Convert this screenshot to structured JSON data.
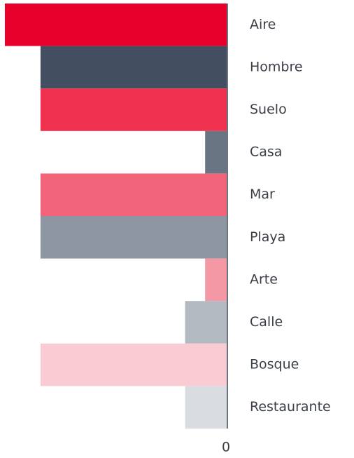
{
  "chart_data": {
    "type": "bar",
    "orientation": "horizontal",
    "categories": [
      "Aire",
      "Hombre",
      "Suelo",
      "Casa",
      "Mar",
      "Playa",
      "Arte",
      "Calle",
      "Bosque",
      "Restaurante"
    ],
    "values": [
      -10,
      -8.4,
      -8.4,
      -1,
      -8.4,
      -8.4,
      -1,
      -1.9,
      -8.4,
      -1.9
    ],
    "colors": [
      "#e8002a",
      "#434f61",
      "#f03250",
      "#687684",
      "#f2647a",
      "#8e97a1",
      "#f598a6",
      "#b4bac1",
      "#f9cbd3",
      "#d9dde1"
    ],
    "xlim": [
      -10,
      0
    ],
    "xticks": [
      0
    ]
  }
}
